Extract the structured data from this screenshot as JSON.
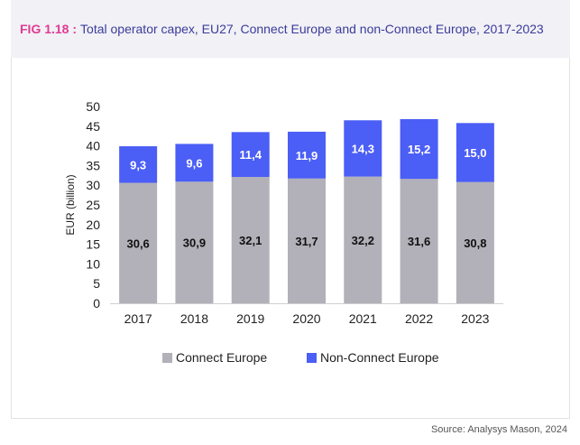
{
  "figure": {
    "label": "FIG 1.18 :",
    "title": "Total operator capex, EU27, Connect Europe and non-Connect Europe, 2017-2023"
  },
  "source": "Source: Analysys Mason, 2024",
  "colors": {
    "connect": "#b2b0b8",
    "non_connect": "#4b5ef5",
    "accent": "#e03a93",
    "title": "#3b3b9b"
  },
  "chart_data": {
    "type": "bar",
    "stacked": true,
    "title": "Total operator capex, EU27, Connect Europe and non-Connect Europe, 2017-2023",
    "categories": [
      "2017",
      "2018",
      "2019",
      "2020",
      "2021",
      "2022",
      "2023"
    ],
    "series": [
      {
        "name": "Connect Europe",
        "values": [
          30.6,
          30.9,
          32.1,
          31.7,
          32.2,
          31.6,
          30.8
        ],
        "labels": [
          "30,6",
          "30,9",
          "32,1",
          "31,7",
          "32,2",
          "31,6",
          "30,8"
        ]
      },
      {
        "name": "Non-Connect Europe",
        "values": [
          9.3,
          9.6,
          11.4,
          11.9,
          14.3,
          15.2,
          15.0
        ],
        "labels": [
          "9,3",
          "9,6",
          "11,4",
          "11,9",
          "14,3",
          "15,2",
          "15,0"
        ]
      }
    ],
    "ylabel": "EUR (billion)",
    "xlabel": "",
    "ylim": [
      0,
      50
    ],
    "yticks": [
      "0",
      "5",
      "10",
      "15",
      "20",
      "25",
      "30",
      "35",
      "40",
      "45",
      "50"
    ],
    "grid": false,
    "legend": "bottom"
  }
}
